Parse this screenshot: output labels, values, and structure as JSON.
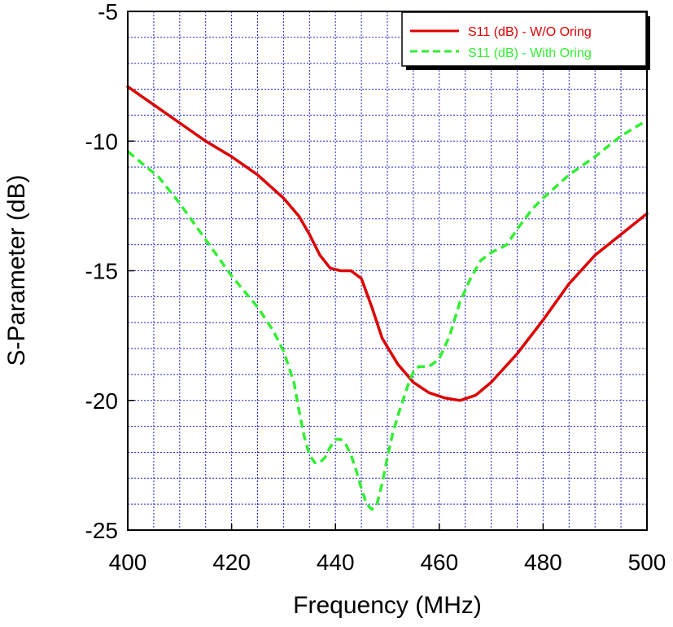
{
  "chart_data": {
    "type": "line",
    "title": "",
    "xlabel": "Frequency (MHz)",
    "ylabel": "S-Parameter (dB)",
    "xlim": [
      400,
      500
    ],
    "ylim": [
      -25,
      -5
    ],
    "xticks": [
      400,
      420,
      440,
      460,
      480,
      500
    ],
    "yticks": [
      -5,
      -10,
      -15,
      -20,
      -25
    ],
    "xtick_labels": [
      "400",
      "420",
      "440",
      "460",
      "480",
      "500"
    ],
    "ytick_labels": [
      "-5",
      "-10",
      "-15",
      "-20",
      "-25"
    ],
    "grid": true,
    "grid_minor": true,
    "legend_position": "top-right",
    "colors": {
      "grid": "#2222cc",
      "axis": "#000000"
    },
    "series": [
      {
        "name": "S11 (dB) - W/O Oring",
        "color": "#dd0000",
        "style": "solid",
        "x": [
          400,
          405,
          410,
          415,
          420,
          425,
          430,
          433,
          435,
          437,
          439,
          441,
          443,
          445,
          447,
          449,
          452,
          455,
          458,
          461,
          464,
          467,
          470,
          475,
          480,
          485,
          490,
          495,
          500
        ],
        "y": [
          -7.9,
          -8.6,
          -9.3,
          -10.0,
          -10.6,
          -11.3,
          -12.2,
          -12.9,
          -13.6,
          -14.4,
          -14.9,
          -15.0,
          -15.0,
          -15.3,
          -16.4,
          -17.6,
          -18.6,
          -19.3,
          -19.7,
          -19.9,
          -20.0,
          -19.8,
          -19.3,
          -18.2,
          -16.9,
          -15.5,
          -14.4,
          -13.6,
          -12.8
        ]
      },
      {
        "name": "S11 (dB) - With Oring",
        "color": "#33ee33",
        "style": "dashed",
        "x": [
          400,
          403,
          406,
          410,
          415,
          420,
          425,
          428,
          430,
          432,
          433,
          434,
          435,
          436,
          437,
          438,
          439,
          440,
          441,
          442,
          443,
          444,
          445,
          446,
          447,
          448,
          449,
          450,
          451,
          452,
          453,
          454,
          455,
          456,
          458,
          460,
          462,
          464,
          466,
          468,
          470,
          473,
          475,
          478,
          480,
          485,
          490,
          495,
          500
        ],
        "y": [
          -10.4,
          -10.9,
          -11.4,
          -12.4,
          -13.8,
          -15.2,
          -16.4,
          -17.3,
          -18.1,
          -19.3,
          -20.4,
          -21.4,
          -22.1,
          -22.4,
          -22.4,
          -22.2,
          -21.8,
          -21.5,
          -21.5,
          -21.7,
          -22.1,
          -22.7,
          -23.4,
          -24.0,
          -24.2,
          -24.0,
          -23.2,
          -22.2,
          -21.3,
          -20.6,
          -20.0,
          -19.4,
          -18.9,
          -18.7,
          -18.7,
          -18.4,
          -17.5,
          -16.2,
          -15.3,
          -14.6,
          -14.3,
          -14.0,
          -13.4,
          -12.6,
          -12.2,
          -11.3,
          -10.6,
          -9.8,
          -9.2
        ]
      }
    ]
  }
}
